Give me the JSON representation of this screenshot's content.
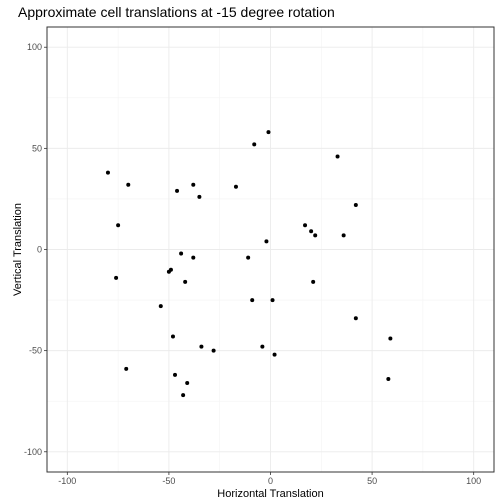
{
  "chart_data": {
    "type": "scatter",
    "title": "Approximate cell translations at -15 degree rotation",
    "xlabel": "Horizontal Translation",
    "ylabel": "Vertical Translation",
    "xlim": [
      -110,
      110
    ],
    "ylim": [
      -110,
      110
    ],
    "xticks": [
      -100,
      -50,
      0,
      50,
      100
    ],
    "yticks": [
      -100,
      -50,
      0,
      50,
      100
    ],
    "grid": true,
    "points": [
      {
        "x": -80,
        "y": 38
      },
      {
        "x": -70,
        "y": 32
      },
      {
        "x": -75,
        "y": 12
      },
      {
        "x": -76,
        "y": -14
      },
      {
        "x": -71,
        "y": -59
      },
      {
        "x": -54,
        "y": -28
      },
      {
        "x": -50,
        "y": -11
      },
      {
        "x": -49,
        "y": -10
      },
      {
        "x": -48,
        "y": -43
      },
      {
        "x": -47,
        "y": -62
      },
      {
        "x": -46,
        "y": 29
      },
      {
        "x": -44,
        "y": -2
      },
      {
        "x": -43,
        "y": -72
      },
      {
        "x": -42,
        "y": -16
      },
      {
        "x": -41,
        "y": -66
      },
      {
        "x": -38,
        "y": 32
      },
      {
        "x": -38,
        "y": -4
      },
      {
        "x": -35,
        "y": 26
      },
      {
        "x": -34,
        "y": -48
      },
      {
        "x": -28,
        "y": -50
      },
      {
        "x": -17,
        "y": 31
      },
      {
        "x": -11,
        "y": -4
      },
      {
        "x": -9,
        "y": -25
      },
      {
        "x": -8,
        "y": 52
      },
      {
        "x": -4,
        "y": -48
      },
      {
        "x": -2,
        "y": 4
      },
      {
        "x": -1,
        "y": 58
      },
      {
        "x": 1,
        "y": -25
      },
      {
        "x": 2,
        "y": -52
      },
      {
        "x": 17,
        "y": 12
      },
      {
        "x": 20,
        "y": 9
      },
      {
        "x": 21,
        "y": -16
      },
      {
        "x": 22,
        "y": 7
      },
      {
        "x": 33,
        "y": 46
      },
      {
        "x": 36,
        "y": 7
      },
      {
        "x": 42,
        "y": 22
      },
      {
        "x": 42,
        "y": -34
      },
      {
        "x": 58,
        "y": -64
      },
      {
        "x": 59,
        "y": -44
      }
    ]
  }
}
